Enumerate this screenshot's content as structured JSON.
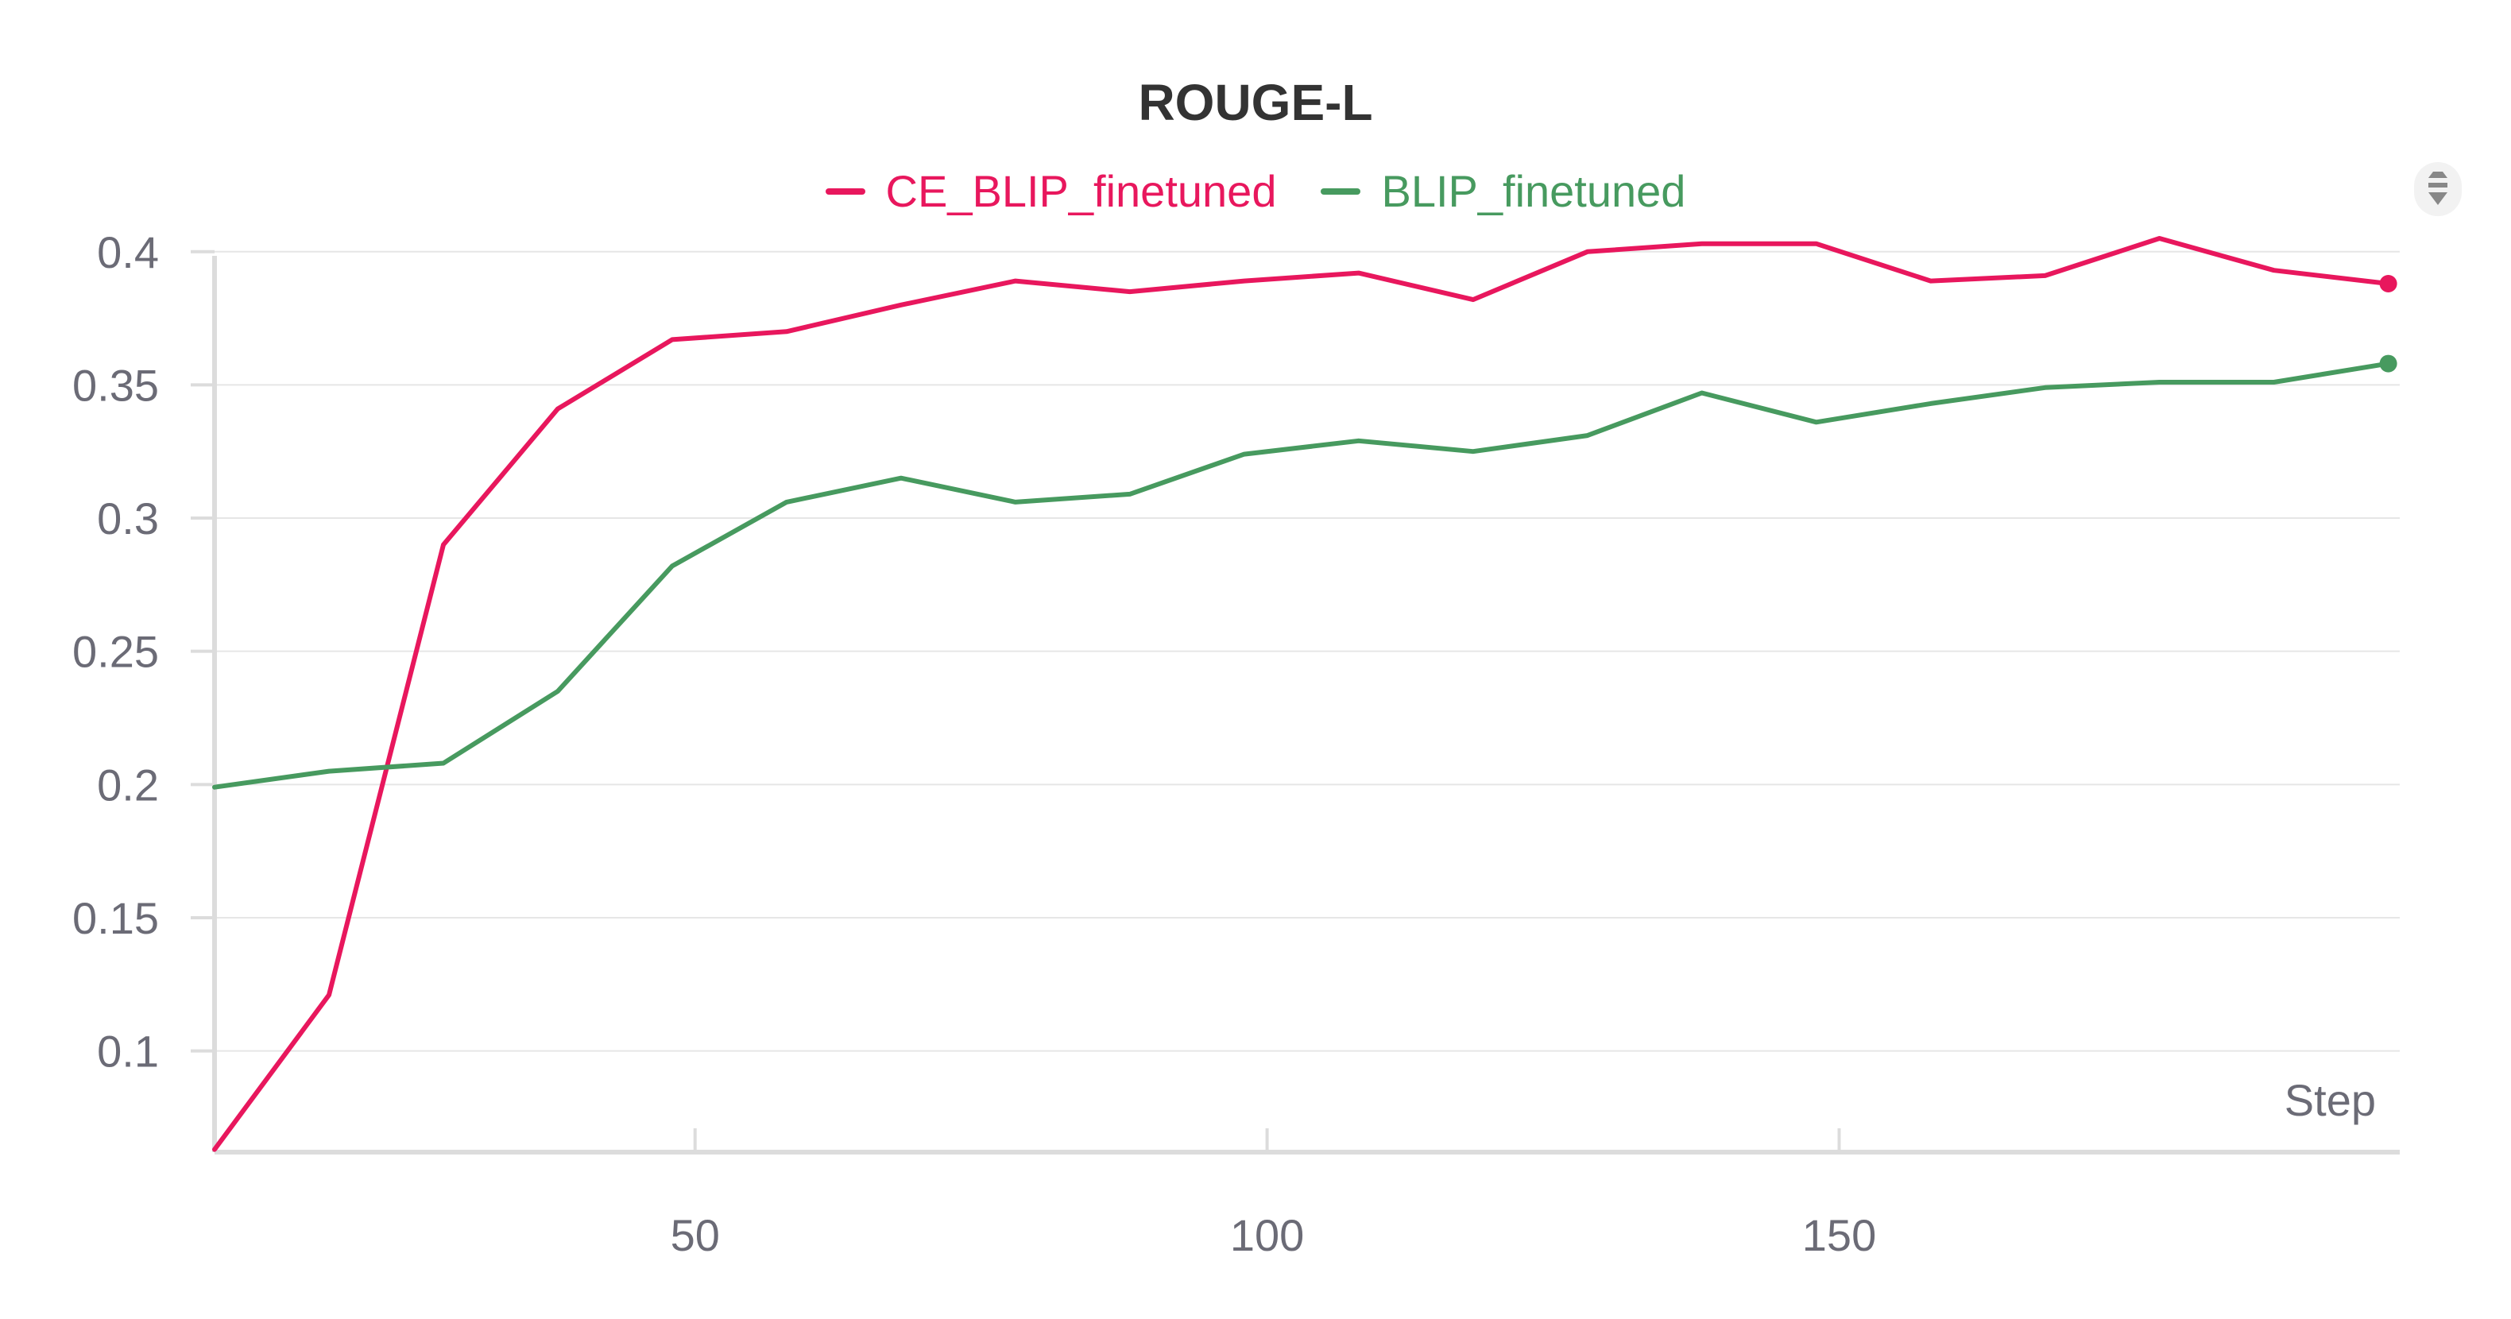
{
  "chart_data": {
    "type": "line",
    "title": "ROUGE-L",
    "xlabel": "Step",
    "ylabel": "",
    "xlim": [
      8,
      199
    ],
    "ylim": [
      0.062,
      0.405
    ],
    "x_ticks": [
      50,
      100,
      150
    ],
    "x_tick_labels": [
      "50",
      "100",
      "150"
    ],
    "y_ticks": [
      0.1,
      0.15,
      0.2,
      0.25,
      0.3,
      0.35,
      0.4
    ],
    "y_tick_labels": [
      "0.1",
      "0.15",
      "0.2",
      "0.25",
      "0.3",
      "0.35",
      "0.4"
    ],
    "grid": true,
    "legend_position": "top-center",
    "x": [
      8,
      18,
      28,
      38,
      48,
      58,
      68,
      78,
      88,
      98,
      108,
      118,
      128,
      138,
      148,
      158,
      168,
      178,
      188,
      198
    ],
    "series": [
      {
        "name": "CE_BLIP_finetuned",
        "color": "#e8175d",
        "values": [
          0.063,
          0.121,
          0.29,
          0.341,
          0.367,
          0.37,
          0.38,
          0.389,
          0.385,
          0.389,
          0.392,
          0.382,
          0.4,
          0.403,
          0.403,
          0.389,
          0.391,
          0.405,
          0.393,
          0.388
        ]
      },
      {
        "name": "BLIP_finetuned",
        "color": "#479a5f",
        "values": [
          0.199,
          0.205,
          0.208,
          0.235,
          0.282,
          0.306,
          0.315,
          0.306,
          0.309,
          0.324,
          0.329,
          0.325,
          0.331,
          0.347,
          0.336,
          0.343,
          0.349,
          0.351,
          0.351,
          0.358
        ]
      }
    ]
  }
}
